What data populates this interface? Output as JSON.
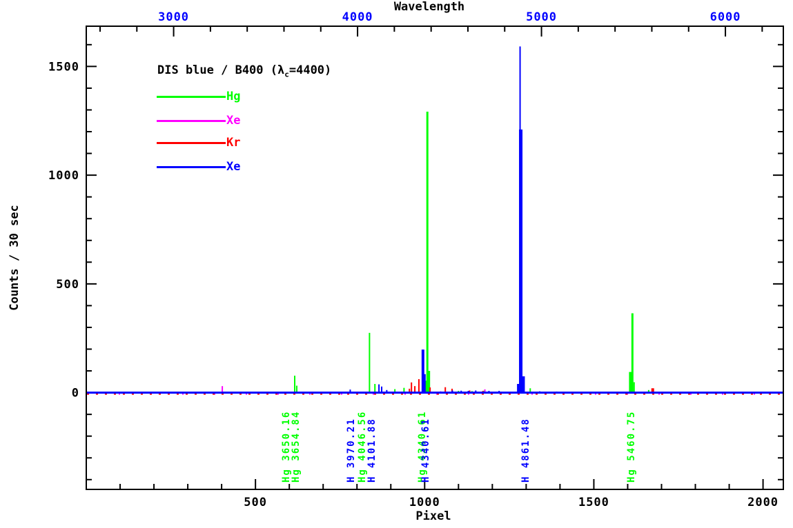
{
  "chart_data": {
    "type": "line",
    "title": "DIS blue / B400 (λc=4400)",
    "grid": false,
    "background": "#ffffff",
    "axis_color": "#000000",
    "top_axis": {
      "label": "Wavelength",
      "label_color": "#000000",
      "tick_color": "#0000ff",
      "ticks": [
        3000,
        4000,
        5000,
        6000
      ],
      "minor_step": 200,
      "range": [
        2525,
        6315
      ]
    },
    "bottom_axis": {
      "label": "Pixel",
      "label_color": "#000000",
      "tick_color": "#000000",
      "ticks": [
        500,
        1000,
        1500,
        2000
      ],
      "minor_step": 100,
      "range": [
        0,
        2060
      ]
    },
    "y_axis": {
      "label": "Counts / 30 sec",
      "label_color": "#000000",
      "tick_color": "#000000",
      "ticks": [
        0,
        500,
        1000,
        1500
      ],
      "minor_step": 100,
      "range": [
        -445,
        1685
      ]
    },
    "legend": {
      "title_pre": "DIS blue / B400 (λ",
      "title_sub": "c",
      "title_post": "=4400)",
      "entries": [
        {
          "label": "Hg",
          "color": "#00ff00"
        },
        {
          "label": "Xe",
          "color": "#ff00ff"
        },
        {
          "label": "Kr",
          "color": "#ff0000"
        },
        {
          "label": "Xe",
          "color": "#0000ff"
        }
      ]
    },
    "series": [
      {
        "name": "Hg",
        "color": "#00ff00",
        "baseline": 0,
        "baseline_width": 2,
        "baseline_offset": 0,
        "baseline_dash": "",
        "spikes": [
          [
            616,
            78
          ],
          [
            622,
            32
          ],
          [
            837,
            275
          ],
          [
            853,
            40
          ],
          [
            912,
            16
          ],
          [
            939,
            22
          ],
          [
            1004,
            55
          ],
          [
            1008,
            1292,
            3
          ],
          [
            1012,
            100,
            4
          ],
          [
            1100,
            8
          ],
          [
            1140,
            7
          ],
          [
            1176,
            9
          ],
          [
            1312,
            20
          ],
          [
            1608,
            95,
            4
          ],
          [
            1614,
            365,
            3
          ],
          [
            1619,
            48
          ],
          [
            1662,
            12
          ]
        ]
      },
      {
        "name": "Xe",
        "color": "#ff00ff",
        "baseline": 0,
        "baseline_width": 2,
        "baseline_offset": 2,
        "baseline_dash": "2 44",
        "spikes": [
          [
            402,
            30
          ],
          [
            1047,
            6
          ],
          [
            1178,
            15
          ]
        ]
      },
      {
        "name": "Kr",
        "color": "#ff0000",
        "baseline": 0,
        "baseline_width": 2,
        "baseline_offset": 2,
        "baseline_dash": "3 10",
        "spikes": [
          [
            955,
            18
          ],
          [
            961,
            47
          ],
          [
            971,
            30
          ],
          [
            983,
            62
          ],
          [
            1016,
            24
          ],
          [
            1061,
            25
          ],
          [
            1081,
            18
          ],
          [
            1133,
            10
          ],
          [
            1172,
            8
          ],
          [
            1280,
            16,
            4
          ],
          [
            1674,
            20,
            4
          ]
        ]
      },
      {
        "name": "Xe",
        "color": "#0000ff",
        "baseline": 0,
        "baseline_width": 3,
        "baseline_offset": 0,
        "baseline_dash": "",
        "spikes": [
          [
            780,
            14
          ],
          [
            865,
            38
          ],
          [
            873,
            28
          ],
          [
            888,
            12
          ],
          [
            995,
            198,
            4
          ],
          [
            1000,
            85,
            3
          ],
          [
            1082,
            10
          ],
          [
            1108,
            9
          ],
          [
            1129,
            8
          ],
          [
            1151,
            10
          ],
          [
            1190,
            8
          ],
          [
            1220,
            8
          ],
          [
            1276,
            40,
            3
          ],
          [
            1282,
            1592,
            2
          ],
          [
            1284,
            1210,
            5
          ],
          [
            1292,
            75,
            4
          ],
          [
            1340,
            6
          ],
          [
            1390,
            5
          ]
        ]
      }
    ],
    "line_labels": [
      {
        "text": "Hg 3650.16",
        "color": "#00ff00",
        "pixel": 577
      },
      {
        "text": "Hg 3654.84",
        "color": "#00ff00",
        "pixel": 606
      },
      {
        "text": "H 3970.21",
        "color": "#0000ff",
        "pixel": 769
      },
      {
        "text": "Hg 4046.56",
        "color": "#00ff00",
        "pixel": 801
      },
      {
        "text": "H 4101.88",
        "color": "#0000ff",
        "pixel": 830
      },
      {
        "text": "Hg 4340.61",
        "color": "#00ff00",
        "pixel": 979,
        "partially_obscured": true
      },
      {
        "text": "H 4340.61",
        "color": "#0000ff",
        "pixel": 989
      },
      {
        "text": "H 4861.48",
        "color": "#0000ff",
        "pixel": 1285
      },
      {
        "text": "Hg 5460.75",
        "color": "#00ff00",
        "pixel": 1597
      }
    ]
  }
}
